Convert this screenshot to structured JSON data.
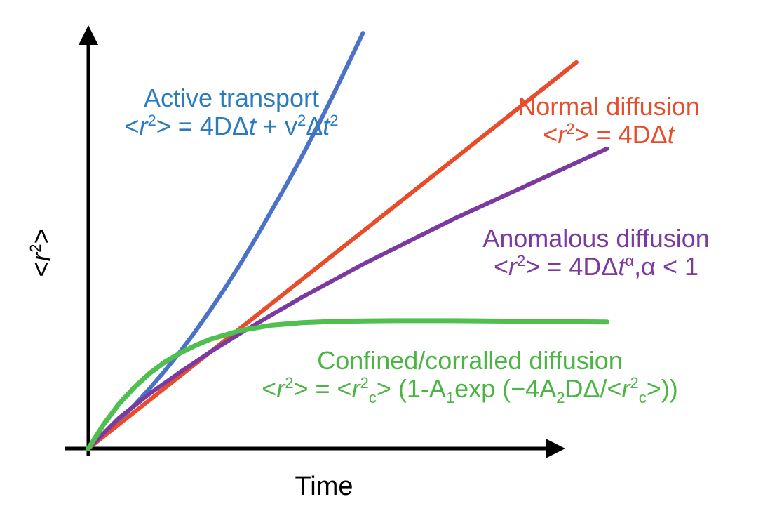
{
  "chart_data": {
    "type": "line",
    "xlabel": "Time",
    "ylabel": "<r2>",
    "grid": false,
    "series": [
      {
        "name": "Active transport",
        "equation": "<r2> = 4DΔt + v2Δt2",
        "color": "#4a72c7",
        "label_color": "#2a7bbf",
        "x": [
          0,
          0.5,
          1,
          1.5,
          2,
          2.5,
          3,
          3.5,
          4,
          4.5,
          5,
          5.5,
          6,
          6.5,
          7,
          7.5,
          8,
          8.5,
          9
        ],
        "y": [
          0,
          0.55,
          1.1,
          1.7,
          2.35,
          3.05,
          3.8,
          4.6,
          5.45,
          6.35,
          7.3,
          8.3,
          9.35,
          10.4,
          11.5,
          12.65,
          13.85,
          15.1,
          16.35
        ]
      },
      {
        "name": "Normal diffusion",
        "equation": "<r2> = 4DΔt",
        "color": "#e84c2b",
        "label_color": "#e84c2b",
        "x": [
          0,
          2,
          4,
          6,
          8,
          10,
          12,
          14,
          16
        ],
        "y": [
          0,
          1.9,
          3.8,
          5.7,
          7.6,
          9.5,
          11.4,
          13.3,
          15.2
        ]
      },
      {
        "name": "Anomalous diffusion",
        "equation": "<r2> = 4DΔtα,α < 1",
        "color": "#7b3aa0",
        "label_color": "#7b3aa0",
        "x": [
          0,
          1,
          2,
          3,
          4,
          5,
          6,
          7,
          8,
          9,
          10,
          11,
          12,
          13,
          14,
          15,
          16,
          17
        ],
        "y": [
          0,
          1.2,
          2.15,
          3.0,
          3.8,
          4.55,
          5.25,
          5.95,
          6.6,
          7.25,
          7.85,
          8.45,
          9.05,
          9.6,
          10.15,
          10.7,
          11.25,
          11.8
        ]
      },
      {
        "name": "Confined/corralled diffusion",
        "equation": "<r2> = <r2c> (1-A1exp (−4A2DΔ/<r2c>))",
        "color": "#4fc04f",
        "label_color": "#4bb543",
        "x": [
          0,
          0.5,
          1,
          1.5,
          2,
          2.5,
          3,
          3.5,
          4,
          5,
          6,
          7,
          8,
          9,
          10,
          11,
          12,
          13,
          14,
          15,
          16,
          17
        ],
        "y": [
          0,
          0.95,
          1.75,
          2.4,
          2.95,
          3.4,
          3.75,
          4.05,
          4.3,
          4.65,
          4.85,
          4.95,
          5.0,
          5.02,
          5.03,
          5.03,
          5.03,
          5.02,
          5.01,
          5.0,
          4.99,
          4.98
        ]
      }
    ],
    "xlim": [
      0,
      19
    ],
    "ylim": [
      0,
      16.5
    ]
  }
}
